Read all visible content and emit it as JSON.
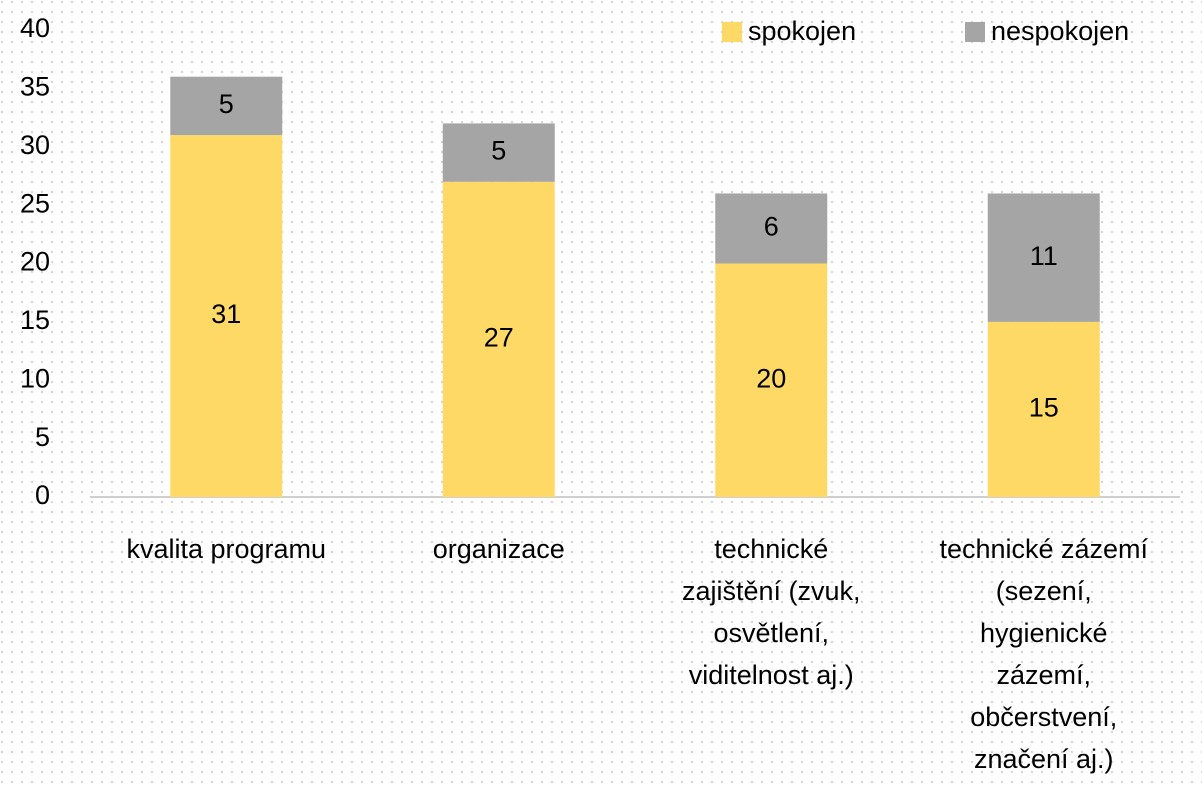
{
  "chart_data": {
    "type": "stacked_bar",
    "categories": [
      [
        "kvalita programu"
      ],
      [
        "organizace"
      ],
      [
        "technické",
        "zajištění (zvuk,",
        "osvětlení,",
        "viditelnost aj.)"
      ],
      [
        "technické zázemí",
        "(sezení,",
        "hygienické",
        "zázemí,",
        "občerstvení,",
        "značení aj.)"
      ]
    ],
    "series": [
      {
        "name": "spokojen",
        "color": "#FFD966",
        "values": [
          31,
          27,
          20,
          15
        ]
      },
      {
        "name": "nespokojen",
        "color": "#A5A5A5",
        "values": [
          5,
          5,
          6,
          11
        ]
      }
    ],
    "ylim": [
      0,
      40
    ],
    "yticks": [
      0,
      5,
      10,
      15,
      20,
      25,
      30,
      35,
      40
    ],
    "grid": false,
    "legend": "top-right"
  }
}
